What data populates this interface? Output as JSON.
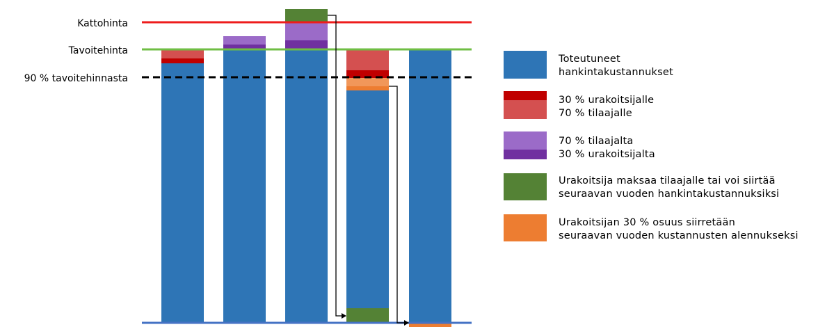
{
  "reference_lines": {
    "ceiling": {
      "label": "Kattohinta",
      "color": "#EE1C1C"
    },
    "target": {
      "label": "Tavoitehinta",
      "color": "#6FBE44"
    },
    "ninety_percent": {
      "label": "90 % tavoitehinnasta",
      "color": "#000000"
    },
    "baseline": {
      "color": "#4472C4"
    }
  },
  "colors": {
    "blue": "#2E75B6",
    "red_dark": "#C00000",
    "red_light": "#D45050",
    "purple_dark": "#7030A0",
    "purple_light": "#9B6BC8",
    "green": "#548235",
    "orange": "#ED7D31"
  },
  "legend": [
    {
      "lines": [
        "Toteutuneet",
        "hankintakustannukset"
      ],
      "swatch": "blue"
    },
    {
      "lines": [
        "30 % urakoitsijalle",
        "70 % tilaajalle"
      ],
      "swatch": "red"
    },
    {
      "lines": [
        "70 % tilaajalta",
        "30 % urakoitsijalta"
      ],
      "swatch": "purple"
    },
    {
      "lines": [
        "Urakoitsija maksaa tilaajalle tai voi siirtää",
        "seuraavan vuoden hankintakustannuksiksi"
      ],
      "swatch": "green"
    },
    {
      "lines": [
        "Urakoitsijan 30 % osuus siirretään",
        "seuraavan vuoden kustannusten alennukseksi"
      ],
      "swatch": "orange"
    }
  ]
}
